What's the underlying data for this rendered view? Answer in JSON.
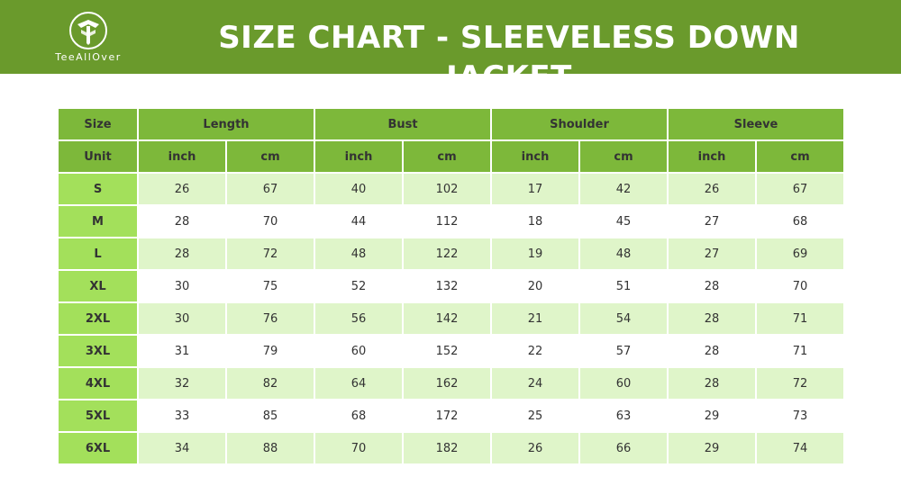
{
  "brand": {
    "name": "TeeAllOver",
    "logo_icon": "tree-letter-t-icon"
  },
  "title": "SIZE CHART - SLEEVELESS DOWN JACKET",
  "colors": {
    "banner": "#6a9a2c",
    "header": "#7db83a",
    "size_cell": "#a3e05b",
    "alt_row": "#dff5c9"
  },
  "table": {
    "groups": [
      "Length",
      "Bust",
      "Shoulder",
      "Sleeve"
    ],
    "size_label": "Size",
    "unit_label": "Unit",
    "units": [
      "inch",
      "cm",
      "inch",
      "cm",
      "inch",
      "cm",
      "inch",
      "cm"
    ],
    "rows": [
      {
        "size": "S",
        "values": [
          "26",
          "67",
          "40",
          "102",
          "17",
          "42",
          "26",
          "67"
        ]
      },
      {
        "size": "M",
        "values": [
          "28",
          "70",
          "44",
          "112",
          "18",
          "45",
          "27",
          "68"
        ]
      },
      {
        "size": "L",
        "values": [
          "28",
          "72",
          "48",
          "122",
          "19",
          "48",
          "27",
          "69"
        ]
      },
      {
        "size": "XL",
        "values": [
          "30",
          "75",
          "52",
          "132",
          "20",
          "51",
          "28",
          "70"
        ]
      },
      {
        "size": "2XL",
        "values": [
          "30",
          "76",
          "56",
          "142",
          "21",
          "54",
          "28",
          "71"
        ]
      },
      {
        "size": "3XL",
        "values": [
          "31",
          "79",
          "60",
          "152",
          "22",
          "57",
          "28",
          "71"
        ]
      },
      {
        "size": "4XL",
        "values": [
          "32",
          "82",
          "64",
          "162",
          "24",
          "60",
          "28",
          "72"
        ]
      },
      {
        "size": "5XL",
        "values": [
          "33",
          "85",
          "68",
          "172",
          "25",
          "63",
          "29",
          "73"
        ]
      },
      {
        "size": "6XL",
        "values": [
          "34",
          "88",
          "70",
          "182",
          "26",
          "66",
          "29",
          "74"
        ]
      }
    ]
  }
}
